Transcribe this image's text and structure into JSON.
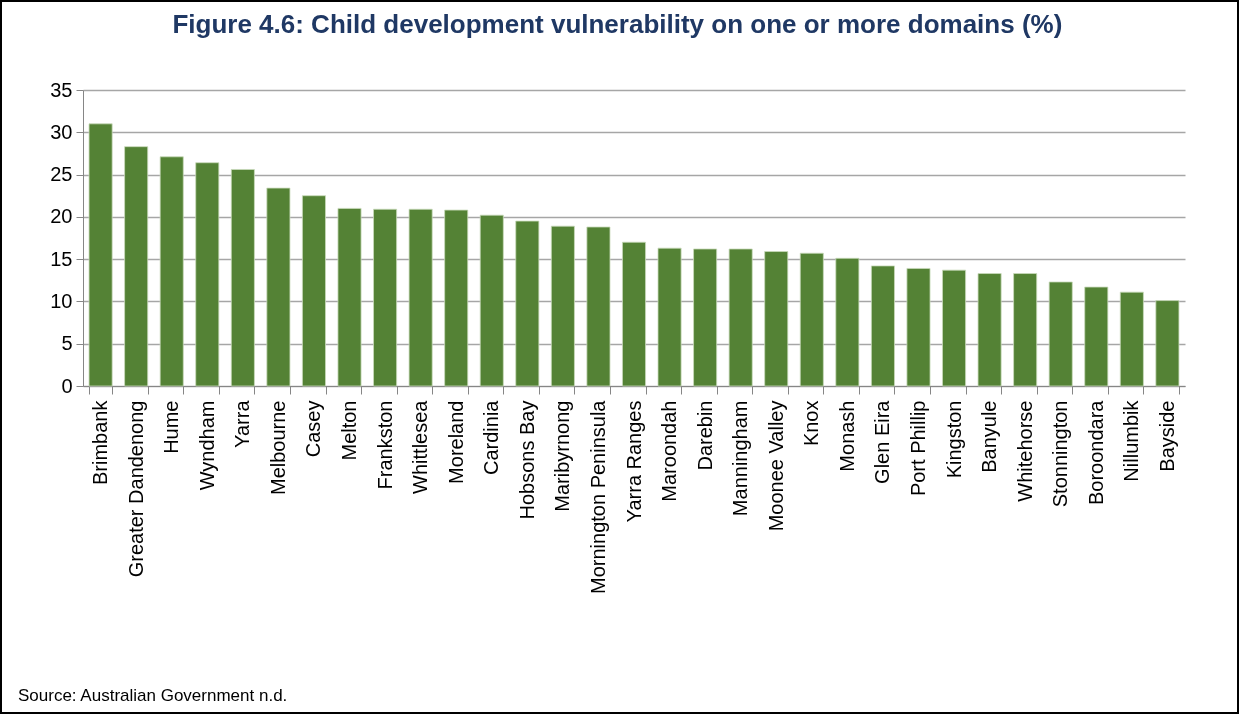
{
  "chart_data": {
    "type": "bar",
    "title": "Figure 4.6: Child development vulnerability on one or more domains (%)",
    "categories": [
      "Brimbank",
      "Greater Dandenong",
      "Hume",
      "Wyndham",
      "Yarra",
      "Melbourne",
      "Casey",
      "Melton",
      "Frankston",
      "Whittlesea",
      "Moreland",
      "Cardinia",
      "Hobsons Bay",
      "Maribyrnong",
      "Mornington Peninsula",
      "Yarra Ranges",
      "Maroondah",
      "Darebin",
      "Manningham",
      "Moonee Valley",
      "Knox",
      "Monash",
      "Glen Eira",
      "Port Phillip",
      "Kingston",
      "Banyule",
      "Whitehorse",
      "Stonnington",
      "Boroondara",
      "Nillumbik",
      "Bayside"
    ],
    "values": [
      31.0,
      28.3,
      27.1,
      26.4,
      25.6,
      23.4,
      22.5,
      21.0,
      20.9,
      20.9,
      20.8,
      20.2,
      19.5,
      18.9,
      18.8,
      17.0,
      16.3,
      16.2,
      16.2,
      15.9,
      15.7,
      15.1,
      14.2,
      13.9,
      13.7,
      13.3,
      13.3,
      12.3,
      11.7,
      11.1,
      10.1
    ],
    "color": "#548235",
    "ylim": [
      0,
      35
    ],
    "yticks": [
      0,
      5,
      10,
      15,
      20,
      25,
      30,
      35
    ],
    "grid": "y",
    "annotations": [
      "Source: Australian Government n.d."
    ]
  }
}
